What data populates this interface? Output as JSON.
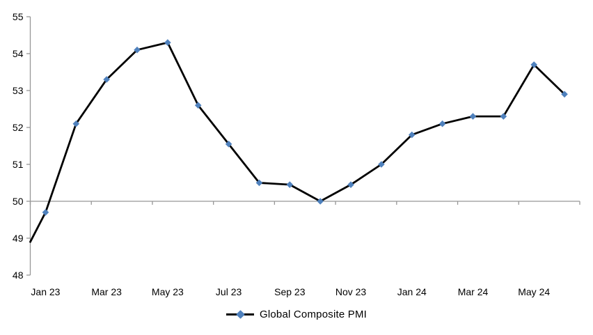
{
  "chart_data": {
    "type": "line",
    "title": "",
    "legend": "Global Composite PMI",
    "legend_position": "bottom",
    "categories": [
      "Jan 23",
      "Feb 23",
      "Mar 23",
      "Apr 23",
      "May 23",
      "Jun 23",
      "Jul 23",
      "Aug 23",
      "Sep 23",
      "Oct 23",
      "Nov 23",
      "Dec 23",
      "Jan 24",
      "Feb 24",
      "Mar 24",
      "Apr 24",
      "May 24",
      "Jun 24"
    ],
    "values": [
      49.7,
      52.1,
      53.3,
      54.1,
      54.3,
      52.6,
      51.55,
      50.5,
      50.45,
      50.0,
      50.45,
      51.0,
      51.8,
      52.1,
      52.3,
      52.3,
      53.7,
      52.9
    ],
    "lead_in_value": 48.9,
    "x_tick_labels": [
      "Jan 23",
      "Mar 23",
      "May 23",
      "Jul 23",
      "Sep 23",
      "Nov 23",
      "Jan 24",
      "Mar 24",
      "May 24"
    ],
    "y_ticks": [
      "48",
      "49",
      "50",
      "51",
      "52",
      "53",
      "54",
      "55"
    ],
    "ylim": [
      48,
      55
    ],
    "baseline": 50,
    "grid": "baseline-only",
    "colors": {
      "line": "#000000",
      "marker": "#4f81bd",
      "axis": "#969696",
      "text": "#000000"
    }
  }
}
